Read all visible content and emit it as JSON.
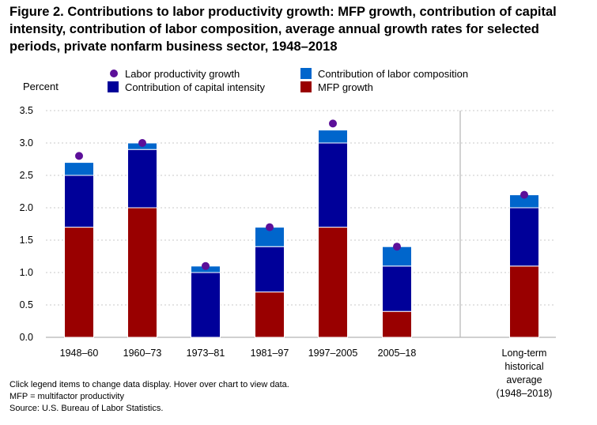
{
  "chart_data": {
    "type": "bar",
    "title": "Figure 2. Contributions to labor productivity growth: MFP growth, contribution of capital intensity, contribution of labor composition, average annual growth rates for selected periods, private nonfarm business sector, 1948–2018",
    "ylabel": "Percent",
    "xlabel": "",
    "ylim": [
      0,
      3.5
    ],
    "yticks": [
      "0.0",
      "0.5",
      "1.0",
      "1.5",
      "2.0",
      "2.5",
      "3.0",
      "3.5"
    ],
    "grid": true,
    "legend_position": "top",
    "categories": [
      "1948–60",
      "1960–73",
      "1973–81",
      "1981–97",
      "1997–2005",
      "2005–18",
      "Long-term historical average (1948–2018)"
    ],
    "category_lines": [
      [
        "1948–60"
      ],
      [
        "1960–73"
      ],
      [
        "1973–81"
      ],
      [
        "1981–97"
      ],
      [
        "1997–2005"
      ],
      [
        "2005–18"
      ],
      [
        "Long-term",
        "historical",
        "average",
        "(1948–2018)"
      ]
    ],
    "series": [
      {
        "name": "MFP growth",
        "kind": "bar",
        "color": "#990000",
        "values": [
          1.7,
          2.0,
          0.0,
          0.7,
          1.7,
          0.4,
          1.1
        ]
      },
      {
        "name": "Contribution of capital intensity",
        "kind": "bar",
        "color": "#000099",
        "values": [
          0.8,
          0.9,
          1.0,
          0.7,
          1.3,
          0.7,
          0.9
        ]
      },
      {
        "name": "Contribution of labor composition",
        "kind": "bar",
        "color": "#0066cc",
        "values": [
          0.2,
          0.1,
          0.1,
          0.3,
          0.2,
          0.3,
          0.2
        ]
      },
      {
        "name": "Labor productivity growth",
        "kind": "marker",
        "color": "#5c0f99",
        "values": [
          2.8,
          3.0,
          1.1,
          1.7,
          3.3,
          1.4,
          2.2
        ]
      }
    ],
    "legend_order": [
      "Labor productivity growth",
      "Contribution of labor composition",
      "Contribution of capital intensity",
      "MFP growth"
    ]
  },
  "notes": {
    "interaction": "Click legend items to change data display. Hover over chart to view data.",
    "abbreviation": "MFP = multifactor productivity",
    "source": "Source: U.S. Bureau of Labor Statistics."
  }
}
